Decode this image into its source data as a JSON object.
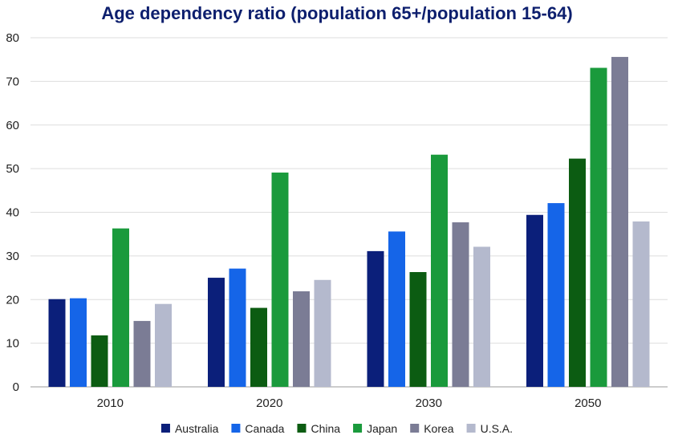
{
  "chart_data": {
    "type": "bar",
    "title": "Age dependency ratio (population 65+/population 15-64)",
    "xlabel": "",
    "ylabel": "",
    "ylim": [
      0,
      80
    ],
    "yticks": [
      0,
      10,
      20,
      30,
      40,
      50,
      60,
      70,
      80
    ],
    "categories": [
      "2010",
      "2020",
      "2030",
      "2050"
    ],
    "grid": true,
    "legend_position": "bottom",
    "series": [
      {
        "name": "Australia",
        "color": "#0b1f7a",
        "values": [
          20.1,
          25.0,
          31.1,
          39.4
        ]
      },
      {
        "name": "Canada",
        "color": "#1565e8",
        "values": [
          20.3,
          27.1,
          35.6,
          42.1
        ]
      },
      {
        "name": "China",
        "color": "#0c5c12",
        "values": [
          11.8,
          18.1,
          26.3,
          52.3
        ]
      },
      {
        "name": "Japan",
        "color": "#1a9a3c",
        "values": [
          36.3,
          49.1,
          53.2,
          73.1
        ]
      },
      {
        "name": "Korea",
        "color": "#7b7c95",
        "values": [
          15.1,
          21.9,
          37.7,
          75.6
        ]
      },
      {
        "name": "U.S.A.",
        "color": "#b4b9cd",
        "values": [
          19.0,
          24.5,
          32.1,
          37.9
        ]
      }
    ]
  }
}
